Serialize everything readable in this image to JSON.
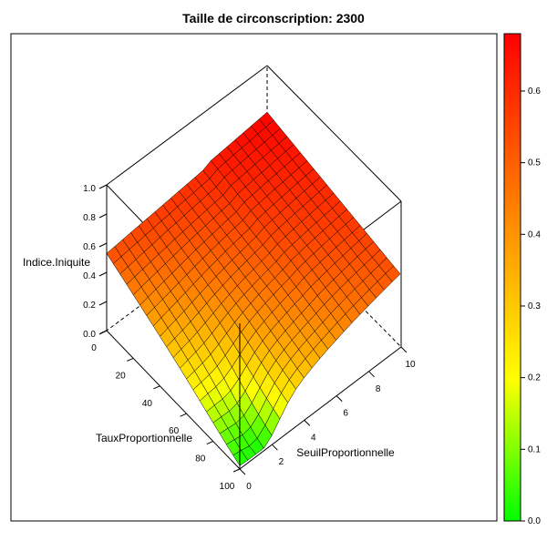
{
  "chart_data": {
    "type": "surface3d",
    "title": "Taille de circonscription:  2300",
    "zlabel": "Indice.Iniquite",
    "xlabel": "TauxProportionnelle",
    "ylabel": "SeuilProportionnelle",
    "zlim": [
      0,
      1
    ],
    "z_ticks": [
      "0.0",
      "0.2",
      "0.4",
      "0.6",
      "0.8",
      "1.0"
    ],
    "x_ticks": [
      "0",
      "20",
      "40",
      "60",
      "80",
      "100"
    ],
    "y_ticks": [
      "0",
      "2",
      "4",
      "6",
      "8",
      "10"
    ],
    "x_range": [
      0,
      100
    ],
    "y_range": [
      0,
      10
    ],
    "colorkey": {
      "range": [
        0,
        0.68
      ],
      "ticks": [
        "0.0",
        "0.1",
        "0.2",
        "0.3",
        "0.4",
        "0.5",
        "0.6"
      ],
      "low_color": "#00ff00",
      "mid_color": "#ffff00",
      "high_color": "#ff0000"
    },
    "surface": {
      "x": [
        0,
        5,
        10,
        15,
        20,
        25,
        30,
        35,
        40,
        45,
        50,
        55,
        60,
        65,
        70,
        75,
        80,
        85,
        90,
        95,
        100
      ],
      "y": [
        0,
        0.5,
        1,
        1.5,
        2,
        2.5,
        3,
        3.5,
        4,
        4.5,
        5,
        5.5,
        6,
        6.5,
        7,
        7.5,
        8,
        8.5,
        9,
        9.5,
        10
      ],
      "z_model": "corner values (x,y): (0,0)=0.53, (0,10)=0.66, (100,10)=0.52, (100,0)=0.06; valley (100,1.5)=0.04",
      "corner_values": {
        "x0_y0": 0.53,
        "x0_y10": 0.66,
        "x100_y10": 0.52,
        "x100_y0": 0.06
      }
    }
  }
}
